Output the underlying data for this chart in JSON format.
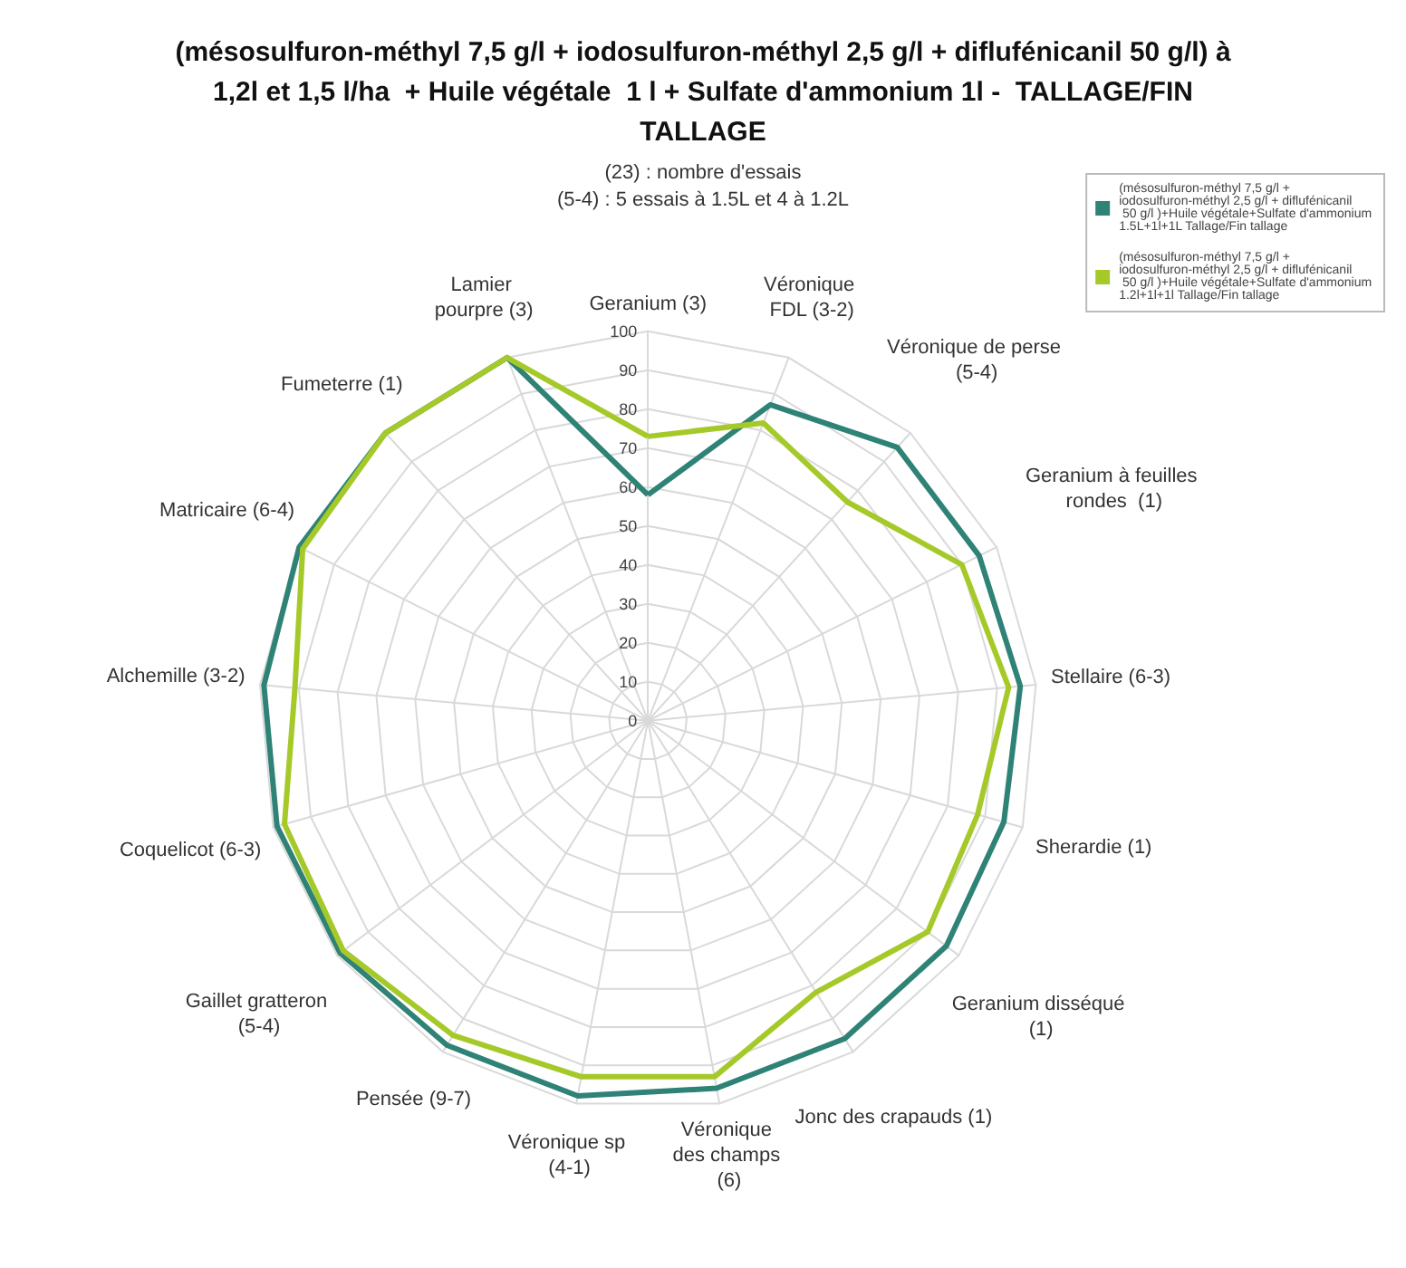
{
  "chart_data": {
    "type": "radar",
    "title": "(mésosulfuron-méthyl 7,5 g/l + iodosulfuron-méthyl 2,5 g/l + diflufénicanil 50 g/l) à 1,2l et 1,5 l/ha  + Huile végétale  1 l + Sulfate d'ammonium 1l -  TALLAGE/FIN TALLAGE",
    "subtitle": "(23) : nombre d'essais\n(5-4) : 5 essais à 1.5L et 4 à 1.2L",
    "categories": [
      "Geranium (3)",
      "Véronique FDL (3-2)",
      "Véronique de perse (5-4)",
      "Geranium à feuilles rondes  (1)",
      "Stellaire (6-3)",
      "Sherardie (1)",
      "Geranium disséqué (1)",
      "Jonc des crapauds (1)",
      "Véronique des champs (6)",
      "Véronique sp (4-1)",
      "Pensée (9-7)",
      "Gaillet gratteron (5-4)",
      "Coquelicot (6-3)",
      "Alchemille (3-2)",
      "Matricaire (6-4)",
      "Fumeterre (1)",
      "Lamier pourpre (3)"
    ],
    "series": [
      {
        "name": "(mésosulfuron-méthyl 7,5 g/l + iodosulfuron-méthyl 2,5 g/l + diflufénicanil 50 g/l )+Huile végétale+Sulfate d'ammonium 1.5L+1l+1L Tallage/Fin tallage",
        "color": "#2f8276",
        "values": [
          58,
          87,
          95,
          95,
          96,
          95,
          96,
          96,
          96,
          98,
          98,
          99,
          99,
          99,
          100,
          100,
          100
        ]
      },
      {
        "name": "(mésosulfuron-méthyl 7,5 g/l + iodosulfuron-méthyl 2,5 g/l + diflufénicanil 50 g/l )+Huile végétale+Sulfate d'ammonium 1.2l+1l+1l Tallage/Fin tallage",
        "color": "#a6c92a",
        "values": [
          73,
          82,
          76,
          90,
          93,
          88,
          90,
          82,
          93,
          93,
          95,
          98,
          97,
          91,
          99,
          100,
          100
        ]
      }
    ],
    "ylim": [
      0,
      100
    ],
    "yticks": [
      0,
      10,
      20,
      30,
      40,
      50,
      60,
      70,
      80,
      90,
      100
    ],
    "legend": "top right",
    "grid": true,
    "marker": "none"
  }
}
